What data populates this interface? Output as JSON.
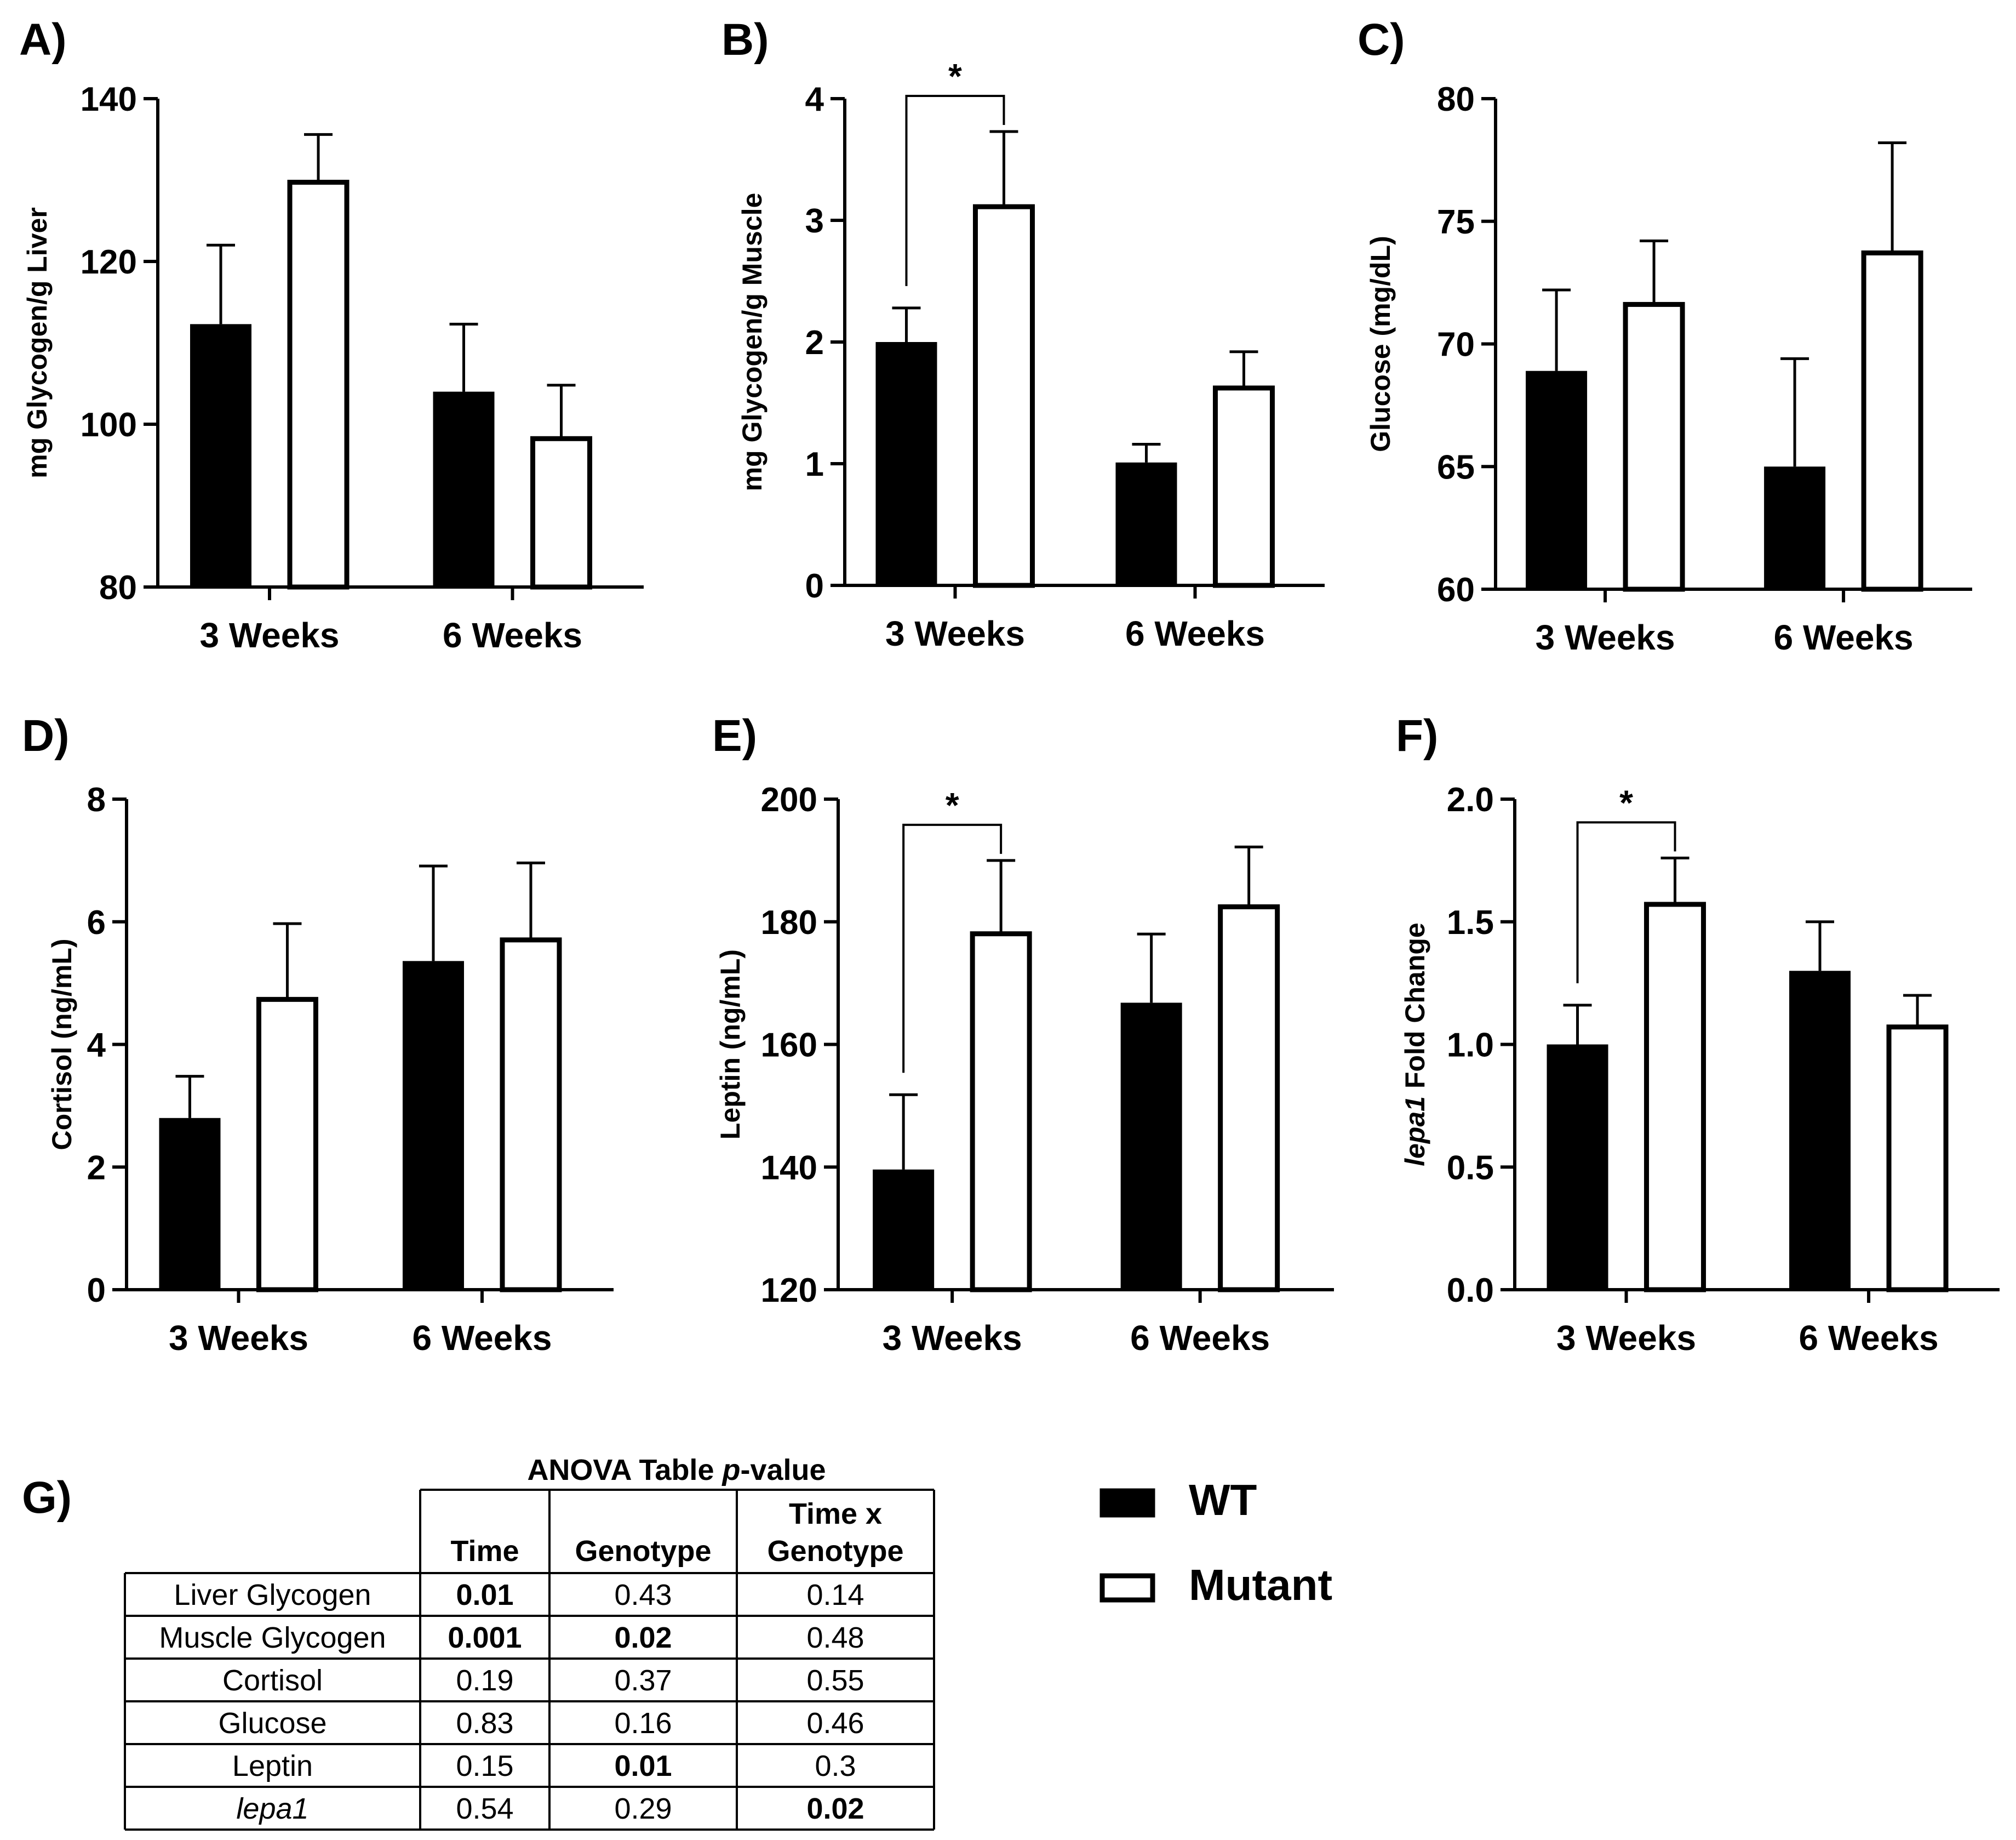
{
  "chart_data": [
    {
      "panel": "A)",
      "type": "bar",
      "categories": [
        "3 Weeks",
        "6 Weeks"
      ],
      "ylabel": "mg Glycogen/g Liver",
      "ylim": [
        80,
        140
      ],
      "yticks": [
        "80",
        "100",
        "120",
        "140"
      ],
      "series": [
        {
          "name": "WT",
          "values": [
            112.3,
            104
          ],
          "errors": [
            9.7,
            8.3
          ]
        },
        {
          "name": "Mutant",
          "values": [
            130,
            98.5
          ],
          "errors": [
            5.6,
            6.3
          ]
        }
      ],
      "significance": []
    },
    {
      "panel": "B)",
      "type": "bar",
      "categories": [
        "3 Weeks",
        "6 Weeks"
      ],
      "ylabel": "mg Glycogen/g Muscle",
      "ylim": [
        0,
        4
      ],
      "yticks": [
        "0",
        "1",
        "2",
        "3",
        "4"
      ],
      "series": [
        {
          "name": "WT",
          "values": [
            2.0,
            1.01
          ],
          "errors": [
            0.28,
            0.15
          ]
        },
        {
          "name": "Mutant",
          "values": [
            3.13,
            1.64
          ],
          "errors": [
            0.6,
            0.28
          ]
        }
      ],
      "significance": [
        {
          "category": 0,
          "label": "*"
        }
      ]
    },
    {
      "panel": "C)",
      "type": "bar",
      "categories": [
        "3 Weeks",
        "6 Weeks"
      ],
      "ylabel": "Glucose (mg/dL)",
      "ylim": [
        60,
        80
      ],
      "yticks": [
        "60",
        "65",
        "70",
        "75",
        "80"
      ],
      "series": [
        {
          "name": "WT",
          "values": [
            68.9,
            65.0
          ],
          "errors": [
            3.3,
            4.4
          ]
        },
        {
          "name": "Mutant",
          "values": [
            71.7,
            73.8
          ],
          "errors": [
            2.5,
            4.4
          ]
        }
      ],
      "significance": []
    },
    {
      "panel": "D)",
      "type": "bar",
      "categories": [
        "3 Weeks",
        "6 Weeks"
      ],
      "ylabel": "Cortisol (ng/mL)",
      "ylim": [
        0,
        8
      ],
      "yticks": [
        "0",
        "2",
        "4",
        "6",
        "8"
      ],
      "series": [
        {
          "name": "WT",
          "values": [
            2.8,
            5.36
          ],
          "errors": [
            0.68,
            1.55
          ]
        },
        {
          "name": "Mutant",
          "values": [
            4.77,
            5.74
          ],
          "errors": [
            1.2,
            1.22
          ]
        }
      ],
      "significance": []
    },
    {
      "panel": "E)",
      "type": "bar",
      "categories": [
        "3 Weeks",
        "6 Weeks"
      ],
      "ylabel": "Leptin (ng/mL)",
      "ylim": [
        120,
        200
      ],
      "yticks": [
        "120",
        "140",
        "160",
        "180",
        "200"
      ],
      "series": [
        {
          "name": "WT",
          "values": [
            139.6,
            166.8
          ],
          "errors": [
            12.2,
            11.2
          ]
        },
        {
          "name": "Mutant",
          "values": [
            178.4,
            182.8
          ],
          "errors": [
            11.6,
            9.4
          ]
        }
      ],
      "significance": [
        {
          "category": 0,
          "label": "*"
        }
      ]
    },
    {
      "panel": "F)",
      "type": "bar",
      "categories": [
        "3 Weeks",
        "6 Weeks"
      ],
      "ylabel": "lepa1 Fold Change",
      "ylabel_italic": "lepa1",
      "ylabel_rest": " Fold Change",
      "ylim": [
        0,
        2
      ],
      "yticks": [
        "0.0",
        "0.5",
        "1.0",
        "1.5",
        "2.0"
      ],
      "series": [
        {
          "name": "WT",
          "values": [
            1.0,
            1.3
          ],
          "errors": [
            0.16,
            0.2
          ]
        },
        {
          "name": "Mutant",
          "values": [
            1.58,
            1.08
          ],
          "errors": [
            0.18,
            0.12
          ]
        }
      ],
      "significance": [
        {
          "category": 0,
          "label": "*"
        }
      ]
    },
    {
      "panel": "G)",
      "type": "table",
      "title_plain": "ANOVA Table ",
      "title_italic": "p",
      "title_rest": "-value",
      "columns": [
        "Time",
        "Genotype",
        "Time x",
        "Genotype"
      ],
      "rows": [
        {
          "label": "Liver Glycogen",
          "italic": false,
          "values": [
            "0.01",
            "0.43",
            "0.14"
          ],
          "bold": [
            true,
            false,
            false
          ]
        },
        {
          "label": "Muscle Glycogen",
          "italic": false,
          "values": [
            "0.001",
            "0.02",
            "0.48"
          ],
          "bold": [
            true,
            true,
            false
          ]
        },
        {
          "label": "Cortisol",
          "italic": false,
          "values": [
            "0.19",
            "0.37",
            "0.55"
          ],
          "bold": [
            false,
            false,
            false
          ]
        },
        {
          "label": "Glucose",
          "italic": false,
          "values": [
            "0.83",
            "0.16",
            "0.46"
          ],
          "bold": [
            false,
            false,
            false
          ]
        },
        {
          "label": "Leptin",
          "italic": false,
          "values": [
            "0.15",
            "0.01",
            "0.3"
          ],
          "bold": [
            false,
            true,
            false
          ]
        },
        {
          "label": "lepa1",
          "italic": true,
          "values": [
            "0.54",
            "0.29",
            "0.02"
          ],
          "bold": [
            false,
            false,
            true
          ]
        }
      ]
    }
  ],
  "legend": [
    {
      "label": "WT",
      "fill": "#000000"
    },
    {
      "label": "Mutant",
      "fill": "#ffffff"
    }
  ],
  "colors": {
    "wt": "#000000",
    "mutant": "#ffffff",
    "stroke": "#000000"
  }
}
